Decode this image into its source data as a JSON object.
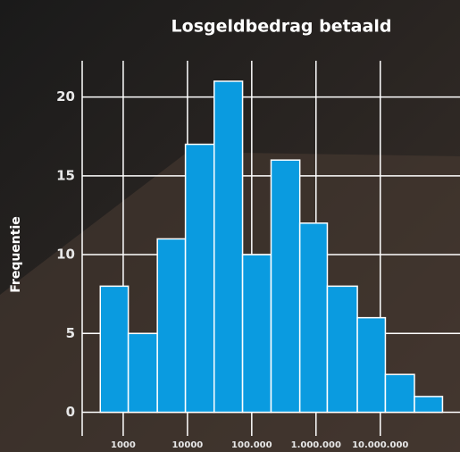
{
  "chart_data": {
    "type": "histogram",
    "title": "Losgeldbedrag betaald",
    "ylabel": "Frequentie",
    "bins": [
      440,
      1200,
      3400,
      9300,
      26000,
      72000,
      200000,
      560000,
      1500000,
      4400000,
      12000000,
      34000000,
      93000000
    ],
    "values": [
      8,
      5,
      11,
      17,
      21,
      10,
      16,
      12,
      8,
      6,
      2.4,
      1
    ],
    "color": "#0a9be0",
    "xscale": "log",
    "xlim": [
      230,
      174000000
    ],
    "xticks": [
      1000,
      10000,
      {
        "value": 100000,
        "label": "100.000"
      },
      {
        "value": 1000000,
        "label": "1.000.000"
      },
      {
        "value": 10000000,
        "label": "10.000.000"
      }
    ],
    "ylim": [
      -1.5,
      22.3
    ],
    "yticks": [
      0,
      5,
      10,
      15,
      20
    ],
    "grid": true
  }
}
